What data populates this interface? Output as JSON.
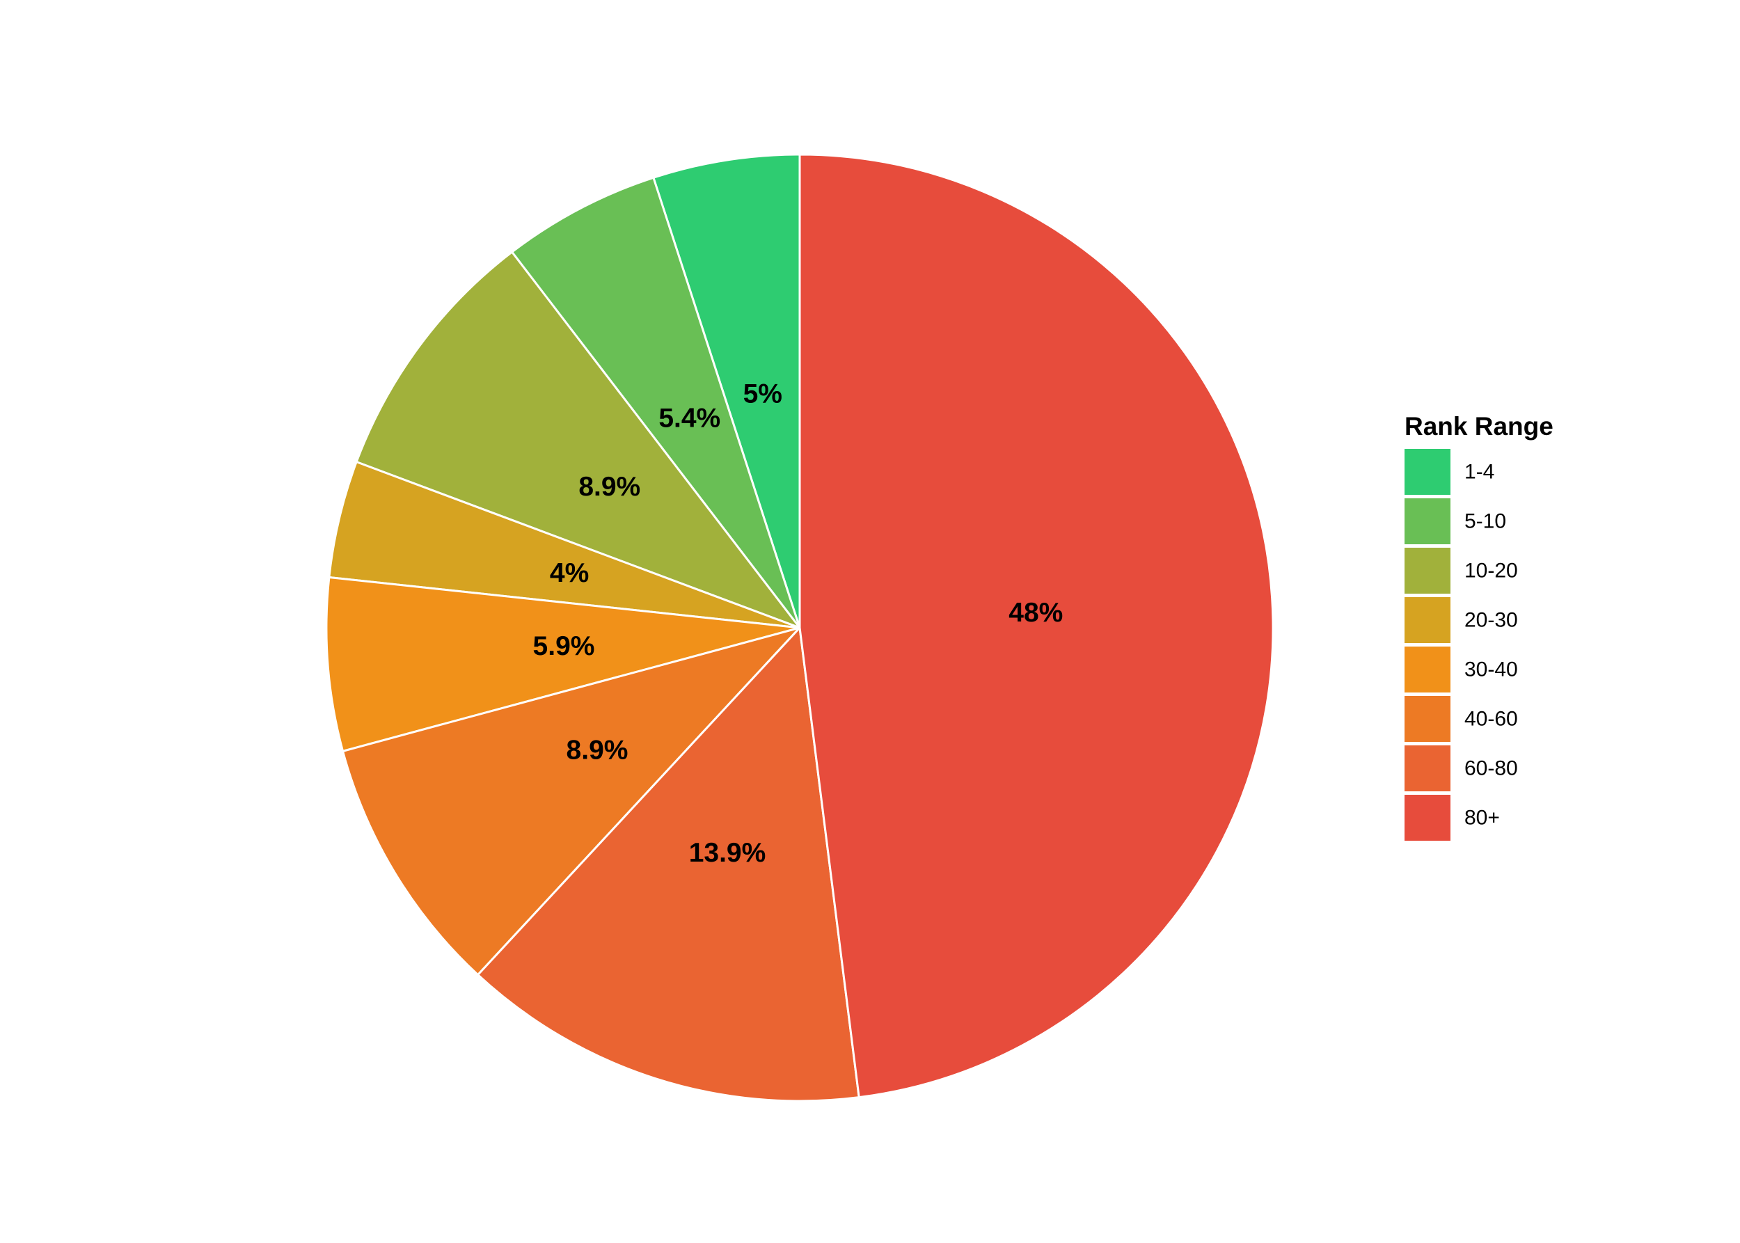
{
  "chart_data": {
    "type": "pie",
    "title": "",
    "legend_title": "Rank Range",
    "legend_position": "right",
    "start_angle": "12 o'clock",
    "direction": "counter-clockwise",
    "slices": [
      {
        "category": "1-4",
        "value": 5,
        "label": "5%",
        "color": "#2ecc71"
      },
      {
        "category": "5-10",
        "value": 5.4,
        "label": "5.4%",
        "color": "#69bf55"
      },
      {
        "category": "10-20",
        "value": 8.9,
        "label": "8.9%",
        "color": "#a1b13b"
      },
      {
        "category": "20-30",
        "value": 4,
        "label": "4%",
        "color": "#d6a321"
      },
      {
        "category": "30-40",
        "value": 5.9,
        "label": "5.9%",
        "color": "#f19119"
      },
      {
        "category": "40-60",
        "value": 8.9,
        "label": "8.9%",
        "color": "#ed7a24"
      },
      {
        "category": "60-80",
        "value": 13.9,
        "label": "13.9%",
        "color": "#ea6432"
      },
      {
        "category": "80+",
        "value": 48,
        "label": "48%",
        "color": "#e74c3c"
      }
    ]
  }
}
